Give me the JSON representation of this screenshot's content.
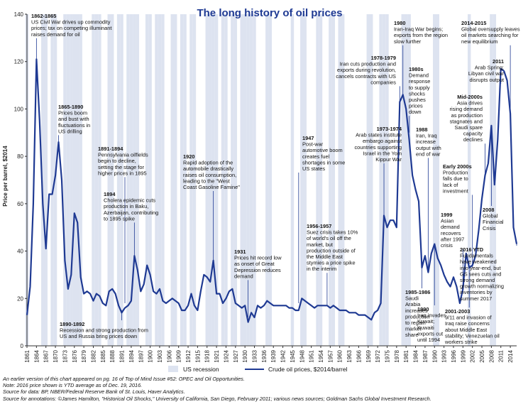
{
  "chart_data": {
    "type": "line",
    "title": "The long history of oil prices",
    "ylabel": "Price per barrel, $2014",
    "xlabel": "",
    "ylim": [
      0,
      140
    ],
    "yticks": [
      0,
      20,
      40,
      60,
      80,
      100,
      120,
      140
    ],
    "xlim": [
      1861,
      2016
    ],
    "xtick_labels": [
      "1861",
      "1864",
      "1867",
      "1870",
      "1873",
      "1876",
      "1879",
      "1882",
      "1885",
      "1888",
      "1891",
      "1894",
      "1897",
      "1900",
      "1903",
      "1906",
      "1909",
      "1912",
      "1915",
      "1918",
      "1921",
      "1924",
      "1927",
      "1930",
      "1933",
      "1936",
      "1939",
      "1942",
      "1945",
      "1948",
      "1951",
      "1954",
      "1957",
      "1960",
      "1963",
      "1966",
      "1969",
      "1972",
      "1975",
      "1978",
      "1981",
      "1984",
      "1987",
      "1990",
      "1993",
      "1996",
      "1999",
      "2002",
      "2005",
      "2008",
      "2011",
      "2014"
    ],
    "grid": false,
    "legend_position": "bottom",
    "series": [
      {
        "name": "Crude oil prices, $2014/barrel",
        "color": "#1f3a93",
        "x": [
          1861,
          1862,
          1863,
          1864,
          1865,
          1866,
          1867,
          1868,
          1869,
          1870,
          1871,
          1872,
          1873,
          1874,
          1875,
          1876,
          1877,
          1878,
          1879,
          1880,
          1881,
          1882,
          1883,
          1884,
          1885,
          1886,
          1887,
          1888,
          1889,
          1890,
          1891,
          1892,
          1893,
          1894,
          1895,
          1896,
          1897,
          1898,
          1899,
          1900,
          1901,
          1902,
          1903,
          1904,
          1905,
          1906,
          1907,
          1908,
          1909,
          1910,
          1911,
          1912,
          1913,
          1914,
          1915,
          1916,
          1917,
          1918,
          1919,
          1920,
          1921,
          1922,
          1923,
          1924,
          1925,
          1926,
          1927,
          1928,
          1929,
          1930,
          1931,
          1932,
          1933,
          1934,
          1935,
          1936,
          1937,
          1938,
          1939,
          1940,
          1941,
          1942,
          1943,
          1944,
          1945,
          1946,
          1947,
          1948,
          1949,
          1950,
          1951,
          1952,
          1953,
          1954,
          1955,
          1956,
          1957,
          1958,
          1959,
          1960,
          1961,
          1962,
          1963,
          1964,
          1965,
          1966,
          1967,
          1968,
          1969,
          1970,
          1971,
          1972,
          1973,
          1974,
          1975,
          1976,
          1977,
          1978,
          1979,
          1980,
          1981,
          1982,
          1983,
          1984,
          1985,
          1986,
          1987,
          1988,
          1989,
          1990,
          1991,
          1992,
          1993,
          1994,
          1995,
          1996,
          1997,
          1998,
          1999,
          2000,
          2001,
          2002,
          2003,
          2004,
          2005,
          2006,
          2007,
          2008,
          2009,
          2010,
          2011,
          2012,
          2013,
          2014,
          2015,
          2016
        ],
        "values": [
          13,
          25,
          60,
          121,
          95,
          60,
          41,
          64,
          64,
          72,
          86,
          70,
          36,
          24,
          30,
          56,
          52,
          29,
          22,
          23,
          22,
          19,
          22,
          21,
          18,
          17,
          23,
          24,
          22,
          17,
          14,
          16,
          17,
          19,
          38,
          32,
          23,
          26,
          34,
          30,
          23,
          22,
          24,
          19,
          18,
          19,
          20,
          19,
          18,
          15,
          15,
          17,
          22,
          17,
          15,
          23,
          30,
          29,
          27,
          36,
          22,
          22,
          18,
          20,
          23,
          24,
          18,
          17,
          16,
          17,
          10,
          14,
          12,
          17,
          16,
          17,
          19,
          18,
          17,
          17,
          17,
          17,
          17,
          16,
          16,
          15,
          15,
          20,
          19,
          18,
          17,
          16,
          17,
          17,
          17,
          17,
          16,
          17,
          16,
          15,
          15,
          15,
          14,
          14,
          14,
          13,
          13,
          13,
          12,
          11,
          14,
          15,
          18,
          55,
          50,
          53,
          53,
          50,
          103,
          106,
          100,
          87,
          72,
          66,
          61,
          33,
          38,
          31,
          39,
          43,
          37,
          34,
          30,
          27,
          25,
          29,
          25,
          18,
          24,
          39,
          33,
          34,
          38,
          49,
          62,
          72,
          77,
          93,
          68,
          87,
          117,
          116,
          112,
          98,
          50,
          43
        ]
      }
    ],
    "recession_band": {
      "name": "US recession",
      "color": "#dde3f0",
      "years": [
        1861,
        1866,
        1867,
        1869,
        1870,
        1873,
        1874,
        1875,
        1876,
        1877,
        1878,
        1882,
        1883,
        1884,
        1887,
        1888,
        1890,
        1891,
        1893,
        1894,
        1895,
        1896,
        1899,
        1900,
        1902,
        1903,
        1904,
        1907,
        1908,
        1910,
        1911,
        1913,
        1914,
        1918,
        1919,
        1920,
        1921,
        1923,
        1924,
        1926,
        1927,
        1929,
        1930,
        1931,
        1932,
        1933,
        1937,
        1938,
        1945,
        1948,
        1949,
        1953,
        1954,
        1957,
        1958,
        1960,
        1961,
        1969,
        1970,
        1973,
        1974,
        1975,
        1980,
        1981,
        1982,
        1990,
        1991,
        2001,
        2008,
        2009
      ]
    }
  },
  "annotations": [
    {
      "head": "1862-1865",
      "lines": [
        "US Civil War drives up commodity",
        "prices; tax on competing illuminant",
        "raises demand for oil"
      ]
    },
    {
      "head": "1865-1890",
      "lines": [
        "Prices boom",
        "and bust with",
        "fluctuations in",
        "US drilling"
      ]
    },
    {
      "head": "1891-1894",
      "lines": [
        "Pennsylvania oilfields",
        "begin to decline,",
        "setting the stage for",
        "higher prices in 1895"
      ]
    },
    {
      "head": "1894",
      "lines": [
        "Cholera epidemic cuts",
        "production in Baku,",
        "Azerbaijan, contributing",
        "to 1895 spike"
      ]
    },
    {
      "head": "1890-1892",
      "lines": [
        "Recession and strong production from",
        "US and Russia bring prices down"
      ]
    },
    {
      "head": "1920",
      "lines": [
        "Rapid adoption of the",
        "automobile drastically",
        "raises oil consumption,",
        "leading to the \"West",
        "Coast Gasoline Famine\""
      ]
    },
    {
      "head": "1931",
      "lines": [
        "Prices hit record low",
        "as onset of Great",
        "Depression reduces",
        "demand"
      ]
    },
    {
      "head": "1947",
      "lines": [
        "Post-war",
        "automotive boom",
        "creates fuel",
        "shortages in some",
        "US states"
      ]
    },
    {
      "head": "1956-1957",
      "lines": [
        "Suez crisis takes 10%",
        "of world's oil off the",
        "market, but",
        "production outside of",
        "the Middle East",
        "stymies a price spike",
        "in the interim"
      ]
    },
    {
      "head": "1973-1974",
      "lines": [
        "Arab states institute",
        "embargo against",
        "countries supporting",
        "Israel in the Yom",
        "Kippur War"
      ]
    },
    {
      "head": "1978-1979",
      "lines": [
        "Iran cuts production and",
        "exports during revolution,",
        "cancels contracts with US",
        "companies"
      ]
    },
    {
      "head": "1980",
      "lines": [
        "Iran-Iraq War begins;",
        "exports from the region",
        "slow further"
      ]
    },
    {
      "head": "1980s",
      "lines": [
        "Demand",
        "response",
        "to supply",
        "shocks",
        "pushes",
        "prices",
        "down"
      ]
    },
    {
      "head": "1985-1986",
      "lines": [
        "Saudi",
        "Arabia",
        "increases",
        "production",
        "to regain",
        "market",
        "share"
      ]
    },
    {
      "head": "1988",
      "lines": [
        "Iran, Iraq",
        "increase",
        "output with",
        "end of war"
      ]
    },
    {
      "head": "1990",
      "lines": [
        "Iraq invades",
        "Kuwait;",
        "Kuwaiti",
        "exports cut",
        "until 1994"
      ]
    },
    {
      "head": "Early 2000s",
      "lines": [
        "Production",
        "falls due to",
        "lack of",
        "investment"
      ]
    },
    {
      "head": "1999",
      "lines": [
        "Asian",
        "demand",
        "recovers",
        "after 1997",
        "crisis"
      ]
    },
    {
      "head": "2001-2003",
      "lines": [
        "9/11 and invasion of",
        "Iraq raise concerns",
        "about Middle East",
        "stability; Venezuelan oil",
        "workers strike"
      ]
    },
    {
      "head": "Mid-2000s",
      "lines": [
        "Asia drives",
        "rising demand",
        "as production",
        "stagnates and",
        "Saudi spare",
        "capacity",
        "declines"
      ]
    },
    {
      "head": "2008",
      "lines": [
        "Global",
        "Financial",
        "Crisis"
      ]
    },
    {
      "head": "2011",
      "lines": [
        "Arab Spring;",
        "Libyan civil war",
        "disrupts output"
      ]
    },
    {
      "head": "2014-2015",
      "lines": [
        "Global oversupply leaves",
        "oil markets searching for",
        "new equilibrium"
      ]
    },
    {
      "head": "2016 YTD",
      "lines": [
        "Fundamentals",
        "have weakened",
        "into year-end, but",
        "GS sees cuts and",
        "strong demand",
        "growth normalizing",
        "inventories by",
        "summer 2017"
      ]
    }
  ],
  "colors": {
    "line": "#1f3a93",
    "title": "#1f3a93",
    "recession": "#dde3f0",
    "highlight": "#e8141b",
    "axis": "#333333"
  },
  "notes": [
    "An earlier version of this chart appeared on pg. 16 of Top of Mind Issue #52: OPEC and Oil Opportunities.",
    "Note: 2016 price shown is YTD average as of Dec. 19, 2016.",
    "Source for data: BP, NBER/Federal Reserve Bank of St. Louis, Haver Analytics.",
    "Source for annotations: ©James Hamilton, \"Historical Oil Shocks,\" University of California, San Diego, February 2011; various news sources; Goldman Sachs Global Investment Research."
  ]
}
